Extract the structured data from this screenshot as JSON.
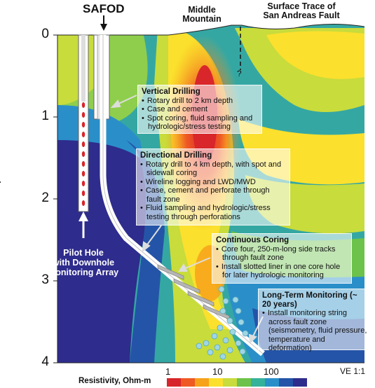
{
  "header": {
    "safod": "SAFOD",
    "middle_mountain": [
      "Middle",
      "Mountain"
    ],
    "fault_trace": [
      "Surface Trace of",
      "San Andreas Fault"
    ],
    "question_mark": "?"
  },
  "y_axis": {
    "label": "Depth, km",
    "ticks": [
      "0",
      "1",
      "2",
      "3",
      "4"
    ]
  },
  "annotations": {
    "vertical_drilling": {
      "title": "Vertical Drilling",
      "items": [
        "Rotary drill to 2 km depth",
        "Case and cement",
        "Spot coring, fluid sampling and hydrologic/stress testing"
      ]
    },
    "directional_drilling": {
      "title": "Directional Drilling",
      "items": [
        "Rotary drill to 4 km depth, with spot and sidewall coring",
        "Wireline logging and LWD/MWD",
        "Case, cement and perforate through fault zone",
        "Fluid sampling and hydrologic/stress testing through perforations"
      ]
    },
    "continuous_coring": {
      "title": "Continuous Coring",
      "items": [
        "Core four, 250-m-long side tracks through fault zone",
        "Install slotted liner in one core hole for later hydrologic monitoring"
      ]
    },
    "long_term_monitoring": {
      "title": "Long-Term Monitoring (~ 20 years)",
      "items": [
        "Install monitoring string across fault zone (seismometry, fluid pressure, temperature and deformation)"
      ]
    },
    "pilot_hole": [
      "Pilot Hole",
      "with Downhole",
      "Monitoring Array"
    ]
  },
  "colorbar": {
    "title": "Resistivity, Ohm-m",
    "ticks": [
      "1",
      "10",
      "100"
    ],
    "colors": [
      "#d7262b",
      "#ef5a24",
      "#f7a21b",
      "#fbe02d",
      "#c8dc3c",
      "#6cc24a",
      "#35b29a",
      "#2a8fc9",
      "#2454a8",
      "#2e2c8c"
    ]
  },
  "vertical_exaggeration": "VE 1:1"
}
